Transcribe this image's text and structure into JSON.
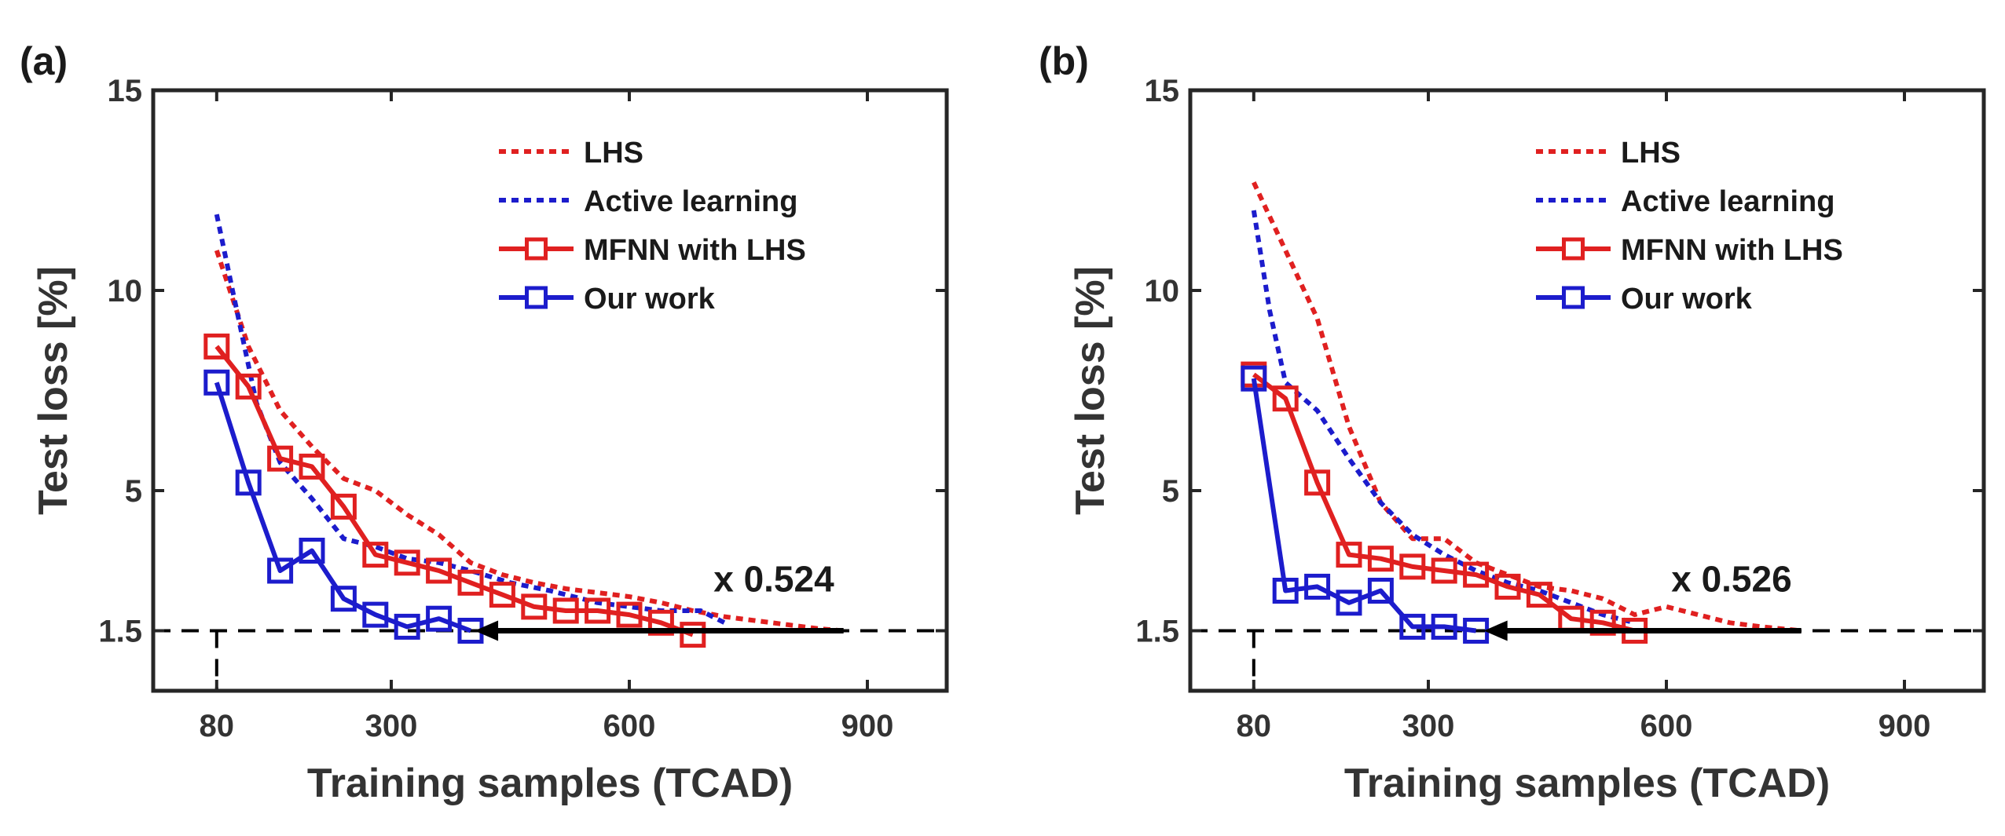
{
  "chart_data": [
    {
      "type": "line",
      "panel_label": "(a)",
      "xlabel": "Training samples (TCAD)",
      "ylabel": "Test loss [%]",
      "xlim": [
        0,
        1000
      ],
      "ylim": [
        0,
        15
      ],
      "xticks": [
        80,
        300,
        600,
        900
      ],
      "yticks": [
        1.5,
        5,
        10,
        15
      ],
      "grid": false,
      "legend_position": "top-right",
      "reference_line": {
        "y": 1.5,
        "style": "dashed",
        "color": "#000000",
        "vertical_at_x": 80
      },
      "annotation": {
        "text": "x 0.524",
        "arrow_from_x": 870,
        "arrow_to_x": 405,
        "arrow_y": 1.5
      },
      "series": [
        {
          "name": "LHS",
          "style": "dotted",
          "color": "#e02020",
          "markers": false,
          "x": [
            80,
            120,
            160,
            200,
            240,
            280,
            320,
            360,
            400,
            440,
            480,
            520,
            560,
            600,
            640,
            680,
            720,
            760,
            800,
            840,
            870
          ],
          "y": [
            11.0,
            8.6,
            7.0,
            6.1,
            5.3,
            5.0,
            4.4,
            3.9,
            3.2,
            2.9,
            2.7,
            2.55,
            2.45,
            2.35,
            2.2,
            2.0,
            1.85,
            1.75,
            1.65,
            1.55,
            1.5
          ]
        },
        {
          "name": "Active learning",
          "style": "dotted",
          "color": "#1c1ccc",
          "markers": false,
          "x": [
            80,
            100,
            130,
            160,
            200,
            240,
            280,
            320,
            360,
            400,
            450,
            500,
            560,
            600,
            640,
            690,
            720
          ],
          "y": [
            11.9,
            10.0,
            7.2,
            5.7,
            4.8,
            3.8,
            3.6,
            3.3,
            3.2,
            3.0,
            2.7,
            2.5,
            2.2,
            2.1,
            2.0,
            2.0,
            1.7
          ]
        },
        {
          "name": "MFNN with LHS",
          "style": "solid",
          "color": "#e02020",
          "markers": true,
          "x": [
            80,
            120,
            160,
            200,
            240,
            280,
            320,
            360,
            400,
            440,
            480,
            520,
            560,
            600,
            640,
            680
          ],
          "y": [
            8.6,
            7.6,
            5.8,
            5.6,
            4.6,
            3.4,
            3.2,
            3.0,
            2.7,
            2.4,
            2.1,
            2.0,
            2.0,
            1.9,
            1.7,
            1.4
          ]
        },
        {
          "name": "Our work",
          "style": "solid",
          "color": "#1c1ccc",
          "markers": true,
          "x": [
            80,
            120,
            160,
            200,
            240,
            280,
            320,
            360,
            400
          ],
          "y": [
            7.7,
            5.2,
            3.0,
            3.5,
            2.3,
            1.9,
            1.6,
            1.8,
            1.5
          ]
        }
      ]
    },
    {
      "type": "line",
      "panel_label": "(b)",
      "xlabel": "Training samples (TCAD)",
      "ylabel": "Test loss [%]",
      "xlim": [
        0,
        1000
      ],
      "ylim": [
        0,
        15
      ],
      "xticks": [
        80,
        300,
        600,
        900
      ],
      "yticks": [
        1.5,
        5,
        10,
        15
      ],
      "grid": false,
      "legend_position": "top-right",
      "reference_line": {
        "y": 1.5,
        "style": "dashed",
        "color": "#000000",
        "vertical_at_x": 80
      },
      "annotation": {
        "text": "x 0.526",
        "arrow_from_x": 770,
        "arrow_to_x": 370,
        "arrow_y": 1.5
      },
      "series": [
        {
          "name": "LHS",
          "style": "dotted",
          "color": "#e02020",
          "markers": false,
          "x": [
            80,
            120,
            160,
            200,
            240,
            280,
            320,
            360,
            400,
            440,
            480,
            520,
            560,
            600,
            640,
            680,
            720,
            770
          ],
          "y": [
            12.7,
            11.0,
            9.3,
            6.6,
            4.7,
            3.8,
            3.8,
            3.2,
            2.9,
            2.6,
            2.5,
            2.3,
            1.9,
            2.1,
            1.9,
            1.7,
            1.6,
            1.5
          ]
        },
        {
          "name": "Active learning",
          "style": "dotted",
          "color": "#1c1ccc",
          "markers": false,
          "x": [
            80,
            100,
            120,
            160,
            200,
            240,
            280,
            320,
            360,
            400,
            440,
            480,
            520,
            560
          ],
          "y": [
            12.0,
            9.5,
            7.7,
            7.0,
            5.8,
            4.7,
            3.9,
            3.4,
            3.0,
            2.7,
            2.5,
            2.2,
            1.9,
            1.7
          ]
        },
        {
          "name": "MFNN with LHS",
          "style": "solid",
          "color": "#e02020",
          "markers": true,
          "x": [
            80,
            120,
            160,
            200,
            240,
            280,
            320,
            360,
            400,
            440,
            480,
            520,
            560
          ],
          "y": [
            7.9,
            7.3,
            5.2,
            3.4,
            3.3,
            3.1,
            3.0,
            2.9,
            2.6,
            2.4,
            1.8,
            1.7,
            1.5
          ]
        },
        {
          "name": "Our work",
          "style": "solid",
          "color": "#1c1ccc",
          "markers": true,
          "x": [
            80,
            120,
            160,
            200,
            240,
            280,
            320,
            360
          ],
          "y": [
            7.8,
            2.5,
            2.6,
            2.2,
            2.5,
            1.6,
            1.6,
            1.5
          ]
        }
      ]
    }
  ]
}
